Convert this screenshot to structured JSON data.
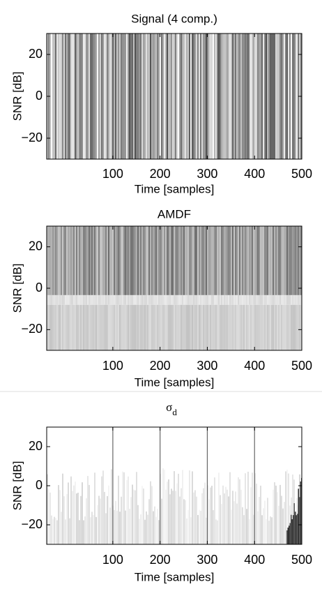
{
  "chart_data": [
    {
      "type": "heatmap",
      "title": "Signal (4 comp.)",
      "xlabel": "Time [samples]",
      "ylabel": "SNR [dB]",
      "xlim": [
        -40,
        500
      ],
      "ylim": [
        -30,
        30
      ],
      "xticks": [
        100,
        200,
        300,
        400,
        500
      ],
      "yticks": [
        {
          "value": -20,
          "label": "−20"
        },
        0,
        20
      ]
    },
    {
      "type": "heatmap",
      "title": "AMDF",
      "xlabel": "Time [samples]",
      "ylabel": "SNR [dB]",
      "xlim": [
        -40,
        500
      ],
      "ylim": [
        -30,
        30
      ],
      "xticks": [
        100,
        200,
        300,
        400,
        500
      ],
      "yticks": [
        {
          "value": -20,
          "label": "−20"
        },
        0,
        20
      ]
    },
    {
      "type": "heatmap",
      "title": "σ",
      "title_subscript": "d",
      "xlabel": "Time [samples]",
      "ylabel": "SNR [dB]",
      "xlim": [
        -40,
        500
      ],
      "ylim": [
        -30,
        30
      ],
      "xticks": [
        100,
        200,
        300,
        400,
        500
      ],
      "yticks": [
        {
          "value": -20,
          "label": "−20"
        },
        0,
        20
      ]
    }
  ]
}
